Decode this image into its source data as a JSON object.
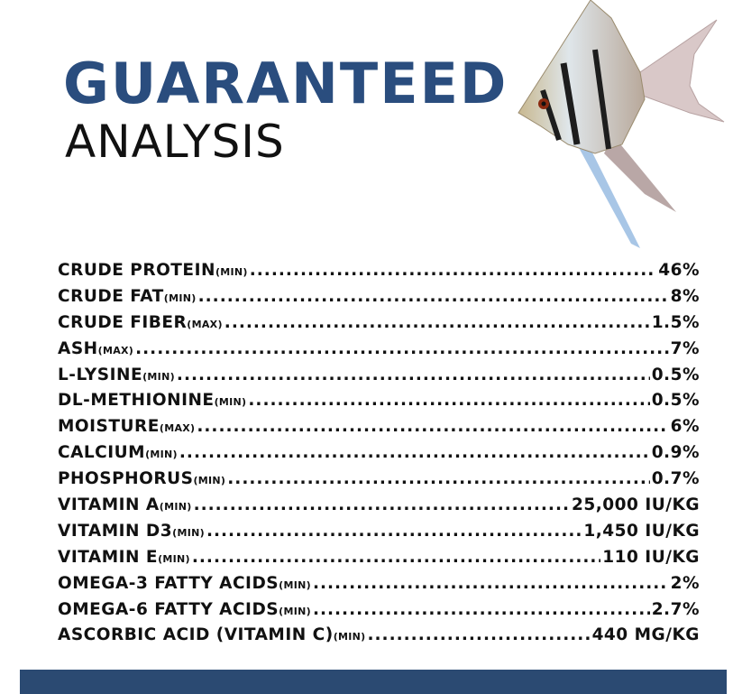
{
  "title": {
    "line1": "GUARANTEED",
    "line2": "ANALYSIS"
  },
  "colors": {
    "title_blue": "#2a4d7e",
    "bar": "#2b4a72"
  },
  "image": "angelfish",
  "items": [
    {
      "name": "CRUDE PROTEIN",
      "qualifier": "(MIN)",
      "value": "46%"
    },
    {
      "name": "CRUDE FAT",
      "qualifier": "(MIN)",
      "value": "8%"
    },
    {
      "name": "CRUDE FIBER",
      "qualifier": "(MAX)",
      "value": "1.5%"
    },
    {
      "name": "ASH",
      "qualifier": "(MAX)",
      "value": "7%"
    },
    {
      "name": "L-LYSINE",
      "qualifier": "(MIN)",
      "value": "0.5%"
    },
    {
      "name": "DL-METHIONINE",
      "qualifier": "(MIN)",
      "value": "0.5%"
    },
    {
      "name": "MOISTURE",
      "qualifier": "(MAX)",
      "value": "6%"
    },
    {
      "name": "CALCIUM",
      "qualifier": "(MIN)",
      "value": "0.9%"
    },
    {
      "name": "PHOSPHORUS",
      "qualifier": "(MIN)",
      "value": "0.7%"
    },
    {
      "name": "VITAMIN A",
      "qualifier": "(MIN)",
      "value": "25,000 IU/KG"
    },
    {
      "name": "VITAMIN D3",
      "qualifier": "(MIN)",
      "value": "1,450 IU/KG"
    },
    {
      "name": "VITAMIN E",
      "qualifier": "(MIN)",
      "value": "110 IU/KG"
    },
    {
      "name": "OMEGA-3 FATTY ACIDS",
      "qualifier": "(MIN)",
      "value": "2%"
    },
    {
      "name": "OMEGA-6 FATTY ACIDS",
      "qualifier": "(MIN)",
      "value": "2.7%"
    },
    {
      "name": "ASCORBIC ACID (VITAMIN C)",
      "qualifier": "(MIN)",
      "value": "440 MG/KG"
    }
  ]
}
